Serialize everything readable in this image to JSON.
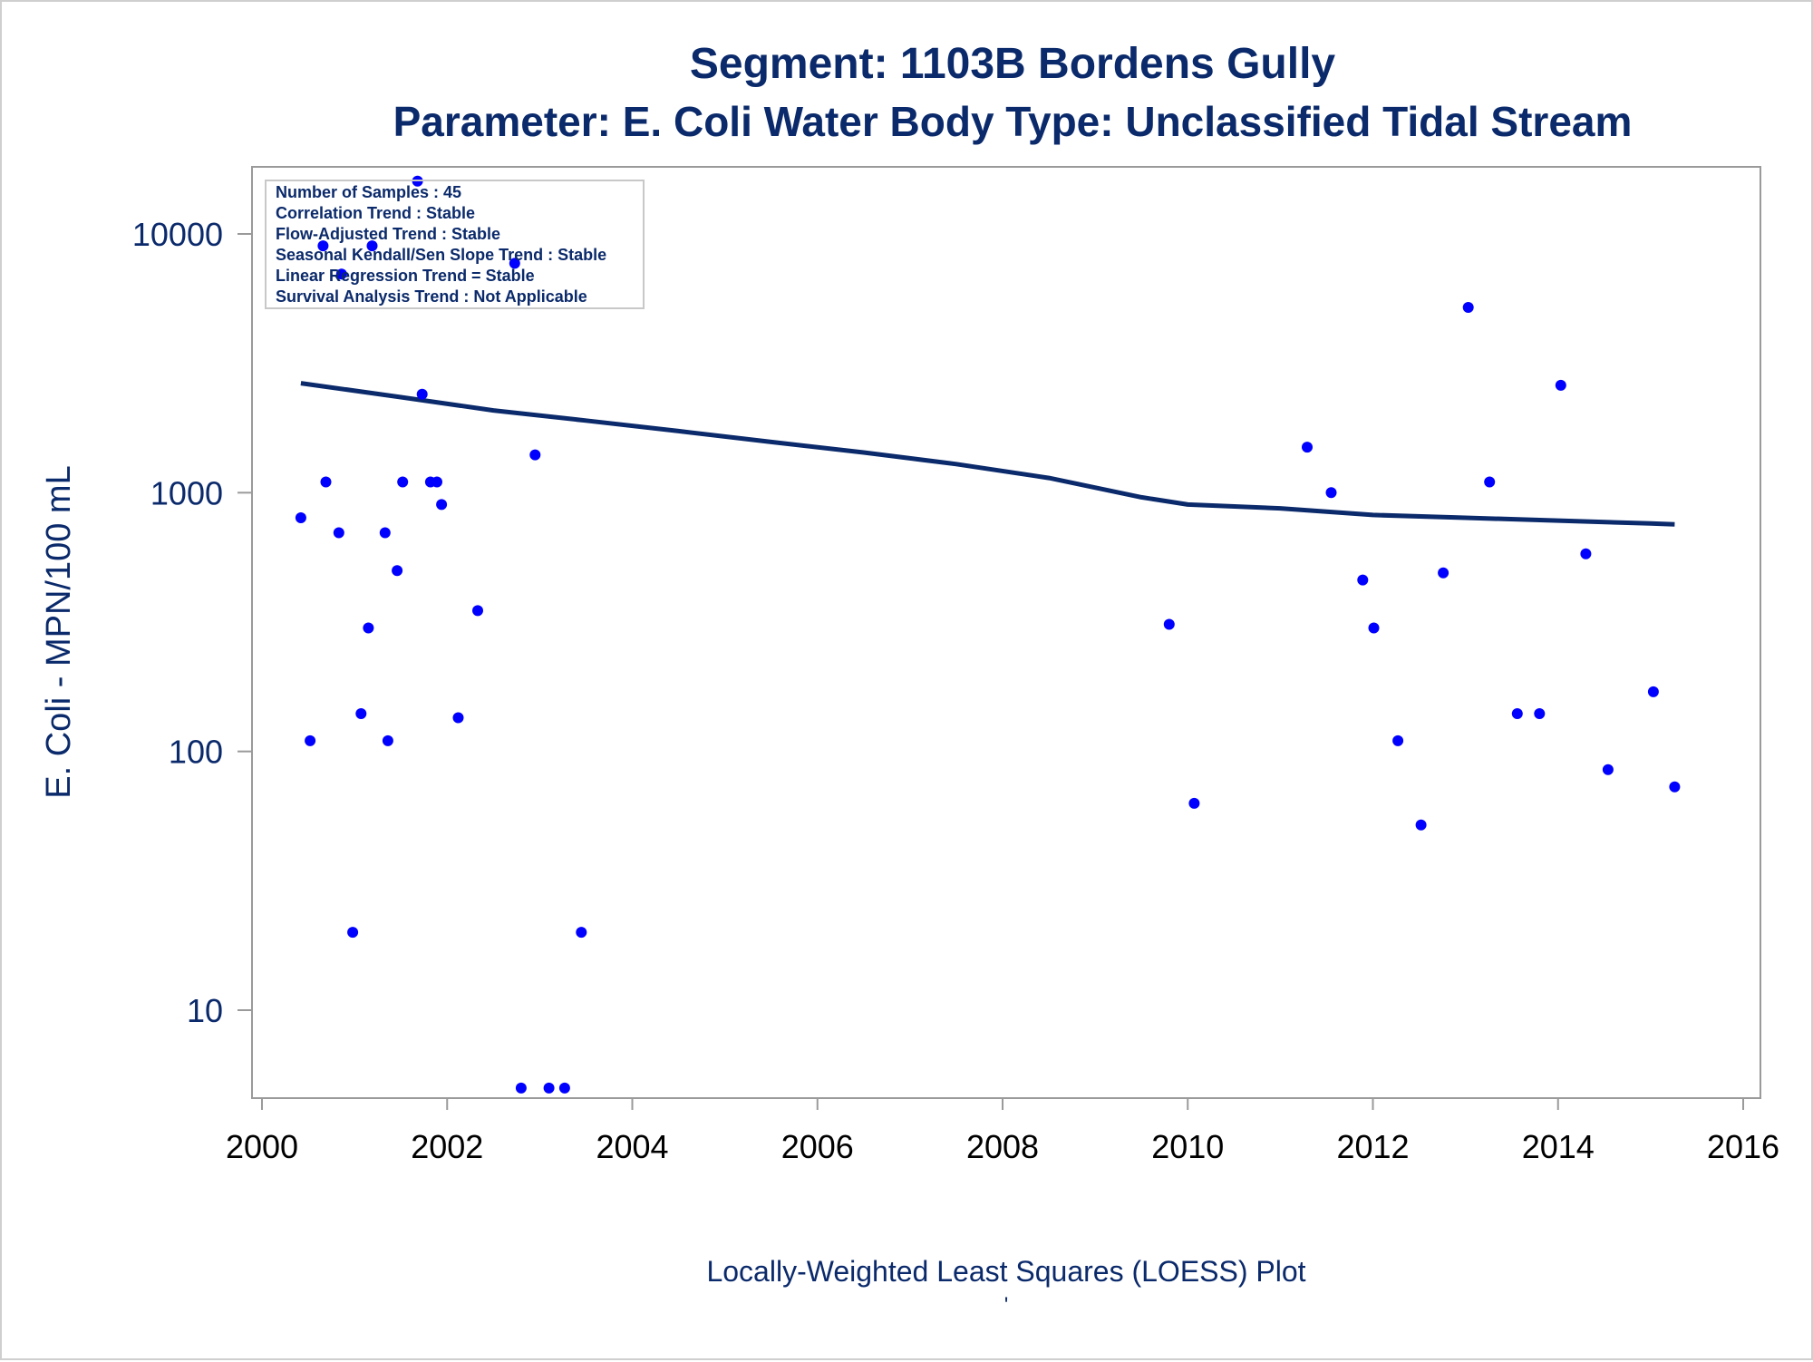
{
  "chart_data": {
    "type": "scatter",
    "title": "Segment: 1103B  Bordens Gully",
    "subtitle": "Parameter: E. Coli   Water Body Type: Unclassified Tidal Stream",
    "xlabel": "Locally-Weighted Least Squares (LOESS) Plot",
    "ylabel": "E. Coli - MPN/100 mL",
    "footnote": "'",
    "xlim": [
      2000,
      2016
    ],
    "ylim": [
      4.7,
      16500
    ],
    "y_scale": "log",
    "x_ticks": [
      2000,
      2002,
      2004,
      2006,
      2008,
      2010,
      2012,
      2014,
      2016
    ],
    "x_tick_labels": [
      "2000",
      "2002",
      "2004",
      "2006",
      "2008",
      "2010",
      "2012",
      "2014",
      "2016"
    ],
    "y_ticks": [
      10,
      100,
      1000,
      10000
    ],
    "y_tick_labels": [
      "10",
      "100",
      "1000",
      "10000"
    ],
    "grid": false,
    "legend": "none",
    "stats_box": {
      "placement": "top-left",
      "lines": [
        "Number of Samples : 45",
        "Correlation Trend : Stable",
        "Flow-Adjusted Trend : Stable",
        "Seasonal Kendall/Sen Slope Trend : Stable",
        "Linear Regression Trend = Stable",
        "Survival Analysis Trend : Not Applicable"
      ]
    },
    "series": [
      {
        "type": "scatter",
        "color": "#0000ff",
        "points": [
          [
            2000.42,
            800
          ],
          [
            2000.52,
            110
          ],
          [
            2000.66,
            9000
          ],
          [
            2000.69,
            1100
          ],
          [
            2000.83,
            700
          ],
          [
            2000.86,
            7000
          ],
          [
            2000.98,
            20
          ],
          [
            2001.07,
            140
          ],
          [
            2001.15,
            300
          ],
          [
            2001.19,
            9000
          ],
          [
            2001.33,
            700
          ],
          [
            2001.36,
            110
          ],
          [
            2001.46,
            500
          ],
          [
            2001.52,
            1100
          ],
          [
            2001.68,
            16000
          ],
          [
            2001.73,
            2400
          ],
          [
            2001.82,
            1100
          ],
          [
            2001.89,
            1100
          ],
          [
            2001.94,
            900
          ],
          [
            2002.12,
            135
          ],
          [
            2002.33,
            350
          ],
          [
            2002.73,
            7700
          ],
          [
            2002.8,
            5
          ],
          [
            2002.95,
            1400
          ],
          [
            2003.1,
            5
          ],
          [
            2003.27,
            5
          ],
          [
            2003.45,
            20
          ],
          [
            2009.8,
            310
          ],
          [
            2010.07,
            63
          ],
          [
            2011.29,
            1500
          ],
          [
            2011.55,
            1000
          ],
          [
            2011.89,
            460
          ],
          [
            2012.01,
            300
          ],
          [
            2012.27,
            110
          ],
          [
            2012.52,
            52
          ],
          [
            2012.76,
            490
          ],
          [
            2013.03,
            5200
          ],
          [
            2013.26,
            1100
          ],
          [
            2013.56,
            140
          ],
          [
            2013.8,
            140
          ],
          [
            2014.03,
            2600
          ],
          [
            2014.3,
            580
          ],
          [
            2014.54,
            85
          ],
          [
            2015.03,
            170
          ],
          [
            2015.26,
            73
          ]
        ]
      },
      {
        "type": "line",
        "color": "#0b2a6b",
        "points": [
          [
            2000.42,
            2650
          ],
          [
            2001.5,
            2340
          ],
          [
            2002.5,
            2080
          ],
          [
            2003.5,
            1900
          ],
          [
            2004.5,
            1730
          ],
          [
            2005.5,
            1570
          ],
          [
            2006.5,
            1430
          ],
          [
            2007.5,
            1290
          ],
          [
            2008.5,
            1140
          ],
          [
            2009.5,
            960
          ],
          [
            2010.0,
            900
          ],
          [
            2011.0,
            870
          ],
          [
            2012.0,
            820
          ],
          [
            2013.0,
            800
          ],
          [
            2014.0,
            780
          ],
          [
            2015.0,
            760
          ],
          [
            2015.26,
            755
          ]
        ]
      }
    ]
  }
}
